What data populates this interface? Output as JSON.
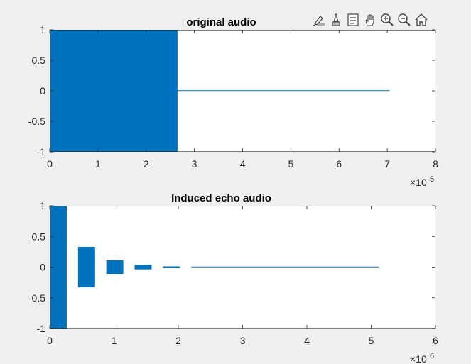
{
  "toolbar": {
    "icons": [
      "brush-icon",
      "insert-colorbar-icon",
      "insert-legend-icon",
      "pan-hand-icon",
      "zoom-in-icon",
      "zoom-out-icon",
      "home-icon"
    ]
  },
  "colors": {
    "background": "#f0f0f0",
    "axes_bg": "#ffffff",
    "series": "#0072bd",
    "axis": "#262626"
  },
  "chart_data": [
    {
      "type": "area",
      "title": "original audio",
      "xlabel": "",
      "ylabel": "",
      "xlim": [
        0,
        800000
      ],
      "ylim": [
        -1,
        1
      ],
      "x_ticks": [
        0,
        100000,
        200000,
        300000,
        400000,
        500000,
        600000,
        700000,
        800000
      ],
      "x_tick_labels": [
        "0",
        "1",
        "2",
        "3",
        "4",
        "5",
        "6",
        "7",
        "8"
      ],
      "y_ticks": [
        1,
        0.5,
        0,
        -0.5,
        -1
      ],
      "y_tick_labels": [
        "1",
        "0.5",
        "0",
        "-0.5",
        "-1"
      ],
      "x_exponent_base": "×10",
      "x_exponent_power": "5",
      "grid": false,
      "legend": "none",
      "series": [
        {
          "segments": [
            {
              "x_start": 0,
              "x_end": 265000,
              "y_max": 1,
              "y_min": -1
            },
            {
              "x_start": 265000,
              "x_end": 705000,
              "y_max": 0.003,
              "y_min": -0.003
            }
          ]
        }
      ]
    },
    {
      "type": "area",
      "title": "Induced echo audio",
      "xlabel": "",
      "ylabel": "",
      "xlim": [
        0,
        6000000
      ],
      "ylim": [
        -1,
        1
      ],
      "x_ticks": [
        0,
        1000000,
        2000000,
        3000000,
        4000000,
        5000000,
        6000000
      ],
      "x_tick_labels": [
        "0",
        "1",
        "2",
        "3",
        "4",
        "5",
        "6"
      ],
      "y_ticks": [
        1,
        0.5,
        0,
        -0.5,
        -1
      ],
      "y_tick_labels": [
        "1",
        "0.5",
        "0",
        "-0.5",
        "-1"
      ],
      "x_exponent_base": "×10",
      "x_exponent_power": "6",
      "grid": false,
      "legend": "none",
      "series": [
        {
          "segments": [
            {
              "x_start": 0,
              "x_end": 265000,
              "y_max": 1,
              "y_min": -1
            },
            {
              "x_start": 440000,
              "x_end": 705000,
              "y_max": 0.33,
              "y_min": -0.33
            },
            {
              "x_start": 880000,
              "x_end": 1145000,
              "y_max": 0.11,
              "y_min": -0.11
            },
            {
              "x_start": 1320000,
              "x_end": 1585000,
              "y_max": 0.037,
              "y_min": -0.037
            },
            {
              "x_start": 1760000,
              "x_end": 2025000,
              "y_max": 0.012,
              "y_min": -0.012
            },
            {
              "x_start": 2200000,
              "x_end": 5120000,
              "y_max": 0.003,
              "y_min": -0.003
            }
          ]
        }
      ]
    }
  ]
}
